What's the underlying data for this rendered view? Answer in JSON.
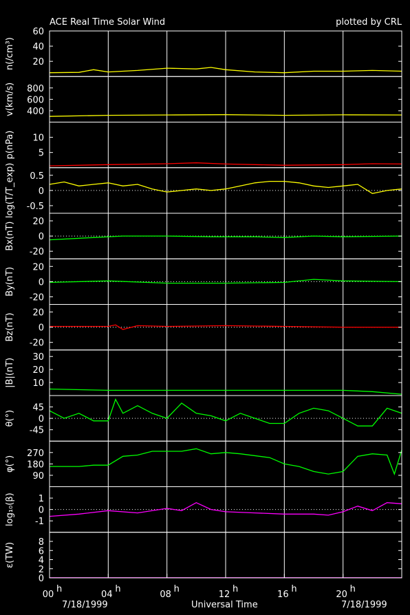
{
  "header": {
    "title": "ACE Real Time Solar Wind",
    "credit": "plotted by CRL"
  },
  "footer": {
    "xlabel": "Universal Time",
    "date_left": "7/18/1999",
    "date_right": "7/18/1999"
  },
  "chart_data": {
    "type": "line",
    "x_axis": {
      "label": "Universal Time",
      "range_hours": [
        0,
        24
      ],
      "ticks": [
        {
          "hour": 0,
          "label": "00",
          "sup": "h"
        },
        {
          "hour": 4,
          "label": "04",
          "sup": "h"
        },
        {
          "hour": 8,
          "label": "08",
          "sup": "h"
        },
        {
          "hour": 12,
          "label": "12",
          "sup": "h"
        },
        {
          "hour": 16,
          "label": "16",
          "sup": "h"
        },
        {
          "hour": 20,
          "label": "20",
          "sup": "h"
        }
      ],
      "grid": true
    },
    "panels": [
      {
        "id": "n",
        "ylabel": "n(/cm³)",
        "ylim": [
          0,
          60
        ],
        "ticks": [
          20,
          40,
          60
        ],
        "zero_line": false,
        "color": "#ffff00",
        "series": [
          [
            0,
            5
          ],
          [
            2,
            5.5
          ],
          [
            3,
            9
          ],
          [
            4,
            6
          ],
          [
            6,
            8
          ],
          [
            8,
            11
          ],
          [
            10,
            10
          ],
          [
            11,
            12
          ],
          [
            12,
            9
          ],
          [
            14,
            6
          ],
          [
            16,
            5
          ],
          [
            18,
            7
          ],
          [
            20,
            7
          ],
          [
            22,
            8
          ],
          [
            24,
            7
          ]
        ]
      },
      {
        "id": "v",
        "ylabel": "v(km/s)",
        "ylim": [
          200,
          1000
        ],
        "ticks": [
          400,
          600,
          800
        ],
        "zero_line": false,
        "color": "#ffff00",
        "series": [
          [
            0,
            300
          ],
          [
            4,
            320
          ],
          [
            8,
            325
          ],
          [
            12,
            330
          ],
          [
            16,
            320
          ],
          [
            20,
            328
          ],
          [
            24,
            325
          ]
        ]
      },
      {
        "id": "p",
        "ylabel": "p(nPa)",
        "ylim": [
          0,
          15
        ],
        "ticks": [
          5,
          10
        ],
        "zero_line": false,
        "color": "#ff0000",
        "series": [
          [
            0,
            0.6
          ],
          [
            4,
            1.0
          ],
          [
            8,
            1.3
          ],
          [
            10,
            1.6
          ],
          [
            12,
            1.2
          ],
          [
            16,
            0.8
          ],
          [
            20,
            1.0
          ],
          [
            22,
            1.3
          ],
          [
            24,
            1.2
          ]
        ]
      },
      {
        "id": "t",
        "ylabel": "log(T/T_exp)",
        "ylim": [
          -0.75,
          0.75
        ],
        "ticks": [
          -0.5,
          0,
          0.5
        ],
        "zero_line": true,
        "color": "#ffff00",
        "series": [
          [
            0,
            0.2
          ],
          [
            1,
            0.28
          ],
          [
            2,
            0.15
          ],
          [
            3,
            0.2
          ],
          [
            4,
            0.25
          ],
          [
            5,
            0.15
          ],
          [
            6,
            0.2
          ],
          [
            7,
            0.05
          ],
          [
            8,
            -0.05
          ],
          [
            9,
            0.0
          ],
          [
            10,
            0.05
          ],
          [
            11,
            0.0
          ],
          [
            12,
            0.05
          ],
          [
            13,
            0.15
          ],
          [
            14,
            0.25
          ],
          [
            15,
            0.3
          ],
          [
            16,
            0.3
          ],
          [
            17,
            0.25
          ],
          [
            18,
            0.15
          ],
          [
            19,
            0.1
          ],
          [
            20,
            0.15
          ],
          [
            21,
            0.2
          ],
          [
            22,
            -0.1
          ],
          [
            23,
            0.0
          ],
          [
            24,
            0.05
          ]
        ]
      },
      {
        "id": "bx",
        "ylabel": "Bx(nT)",
        "ylim": [
          -30,
          30
        ],
        "ticks": [
          -20,
          0,
          20
        ],
        "zero_line": true,
        "color": "#00ff00",
        "series": [
          [
            0,
            -5
          ],
          [
            3,
            -2
          ],
          [
            5,
            0
          ],
          [
            8,
            0
          ],
          [
            11,
            -1
          ],
          [
            14,
            -1
          ],
          [
            16,
            -2
          ],
          [
            18,
            0
          ],
          [
            20,
            -1
          ],
          [
            24,
            0
          ]
        ]
      },
      {
        "id": "by",
        "ylabel": "By(nT)",
        "ylim": [
          -30,
          30
        ],
        "ticks": [
          -20,
          0,
          20
        ],
        "zero_line": true,
        "color": "#00ff00",
        "series": [
          [
            0,
            -1
          ],
          [
            4,
            1
          ],
          [
            8,
            -2
          ],
          [
            12,
            -2
          ],
          [
            16,
            -1
          ],
          [
            18,
            3
          ],
          [
            20,
            1
          ],
          [
            24,
            0
          ]
        ]
      },
      {
        "id": "bz",
        "ylabel": "Bz(nT)",
        "ylim": [
          -30,
          30
        ],
        "ticks": [
          -20,
          0,
          20
        ],
        "zero_line": true,
        "color": "#ff0000",
        "series": [
          [
            0,
            1
          ],
          [
            4,
            1
          ],
          [
            4.5,
            3
          ],
          [
            5,
            -3
          ],
          [
            6,
            2
          ],
          [
            8,
            1
          ],
          [
            12,
            2
          ],
          [
            16,
            1
          ],
          [
            20,
            0
          ],
          [
            24,
            0
          ]
        ]
      },
      {
        "id": "bt",
        "ylabel": "|B|(nT)",
        "ylim": [
          0,
          35
        ],
        "ticks": [
          10,
          20,
          30
        ],
        "zero_line": false,
        "color": "#00ff00",
        "series": [
          [
            0,
            5
          ],
          [
            4,
            4
          ],
          [
            8,
            4
          ],
          [
            12,
            4
          ],
          [
            16,
            4
          ],
          [
            20,
            4
          ],
          [
            22,
            3
          ],
          [
            24,
            1
          ]
        ]
      },
      {
        "id": "theta",
        "ylabel": "θ(°)",
        "ylim": [
          -90,
          90
        ],
        "ticks": [
          -45,
          0,
          45
        ],
        "zero_line": true,
        "color": "#00ff00",
        "series": [
          [
            0,
            30
          ],
          [
            1,
            0
          ],
          [
            2,
            20
          ],
          [
            3,
            -10
          ],
          [
            4,
            -10
          ],
          [
            4.5,
            75
          ],
          [
            5,
            20
          ],
          [
            6,
            50
          ],
          [
            7,
            20
          ],
          [
            8,
            0
          ],
          [
            9,
            60
          ],
          [
            10,
            20
          ],
          [
            11,
            10
          ],
          [
            12,
            -10
          ],
          [
            13,
            20
          ],
          [
            14,
            0
          ],
          [
            15,
            -20
          ],
          [
            16,
            -20
          ],
          [
            17,
            20
          ],
          [
            18,
            40
          ],
          [
            19,
            30
          ],
          [
            20,
            0
          ],
          [
            21,
            -30
          ],
          [
            22,
            -30
          ],
          [
            23,
            40
          ],
          [
            24,
            20
          ]
        ]
      },
      {
        "id": "phi",
        "ylabel": "φ(°)",
        "ylim": [
          0,
          360
        ],
        "ticks": [
          90,
          180,
          270
        ],
        "zero_line": false,
        "color": "#00ff00",
        "series": [
          [
            0,
            160
          ],
          [
            2,
            160
          ],
          [
            3,
            170
          ],
          [
            4,
            170
          ],
          [
            5,
            240
          ],
          [
            6,
            250
          ],
          [
            7,
            280
          ],
          [
            9,
            280
          ],
          [
            10,
            300
          ],
          [
            11,
            260
          ],
          [
            12,
            270
          ],
          [
            13,
            260
          ],
          [
            15,
            230
          ],
          [
            16,
            180
          ],
          [
            17,
            160
          ],
          [
            18,
            120
          ],
          [
            19,
            100
          ],
          [
            20,
            120
          ],
          [
            21,
            240
          ],
          [
            22,
            260
          ],
          [
            23,
            250
          ],
          [
            23.5,
            100
          ],
          [
            24,
            290
          ]
        ]
      },
      {
        "id": "beta",
        "ylabel": "log₁₀(β)",
        "ylim": [
          -2,
          2
        ],
        "ticks": [
          -1,
          0,
          1
        ],
        "zero_line": true,
        "color": "#ff00ff",
        "series": [
          [
            0,
            -0.6
          ],
          [
            2,
            -0.4
          ],
          [
            4,
            -0.1
          ],
          [
            6,
            -0.3
          ],
          [
            8,
            0.1
          ],
          [
            9,
            -0.1
          ],
          [
            10,
            0.6
          ],
          [
            11,
            0.0
          ],
          [
            12,
            -0.2
          ],
          [
            14,
            -0.3
          ],
          [
            16,
            -0.4
          ],
          [
            18,
            -0.4
          ],
          [
            19,
            -0.5
          ],
          [
            20,
            -0.2
          ],
          [
            21,
            0.3
          ],
          [
            22,
            -0.1
          ],
          [
            23,
            0.6
          ],
          [
            24,
            0.5
          ]
        ]
      },
      {
        "id": "eps",
        "ylabel": "ε(TW)",
        "ylim": [
          0,
          10
        ],
        "ticks": [
          0,
          2,
          4,
          6,
          8
        ],
        "zero_line": false,
        "color": "#ff00ff",
        "series": [
          [
            0,
            0.03
          ],
          [
            24,
            0.03
          ]
        ]
      }
    ]
  }
}
